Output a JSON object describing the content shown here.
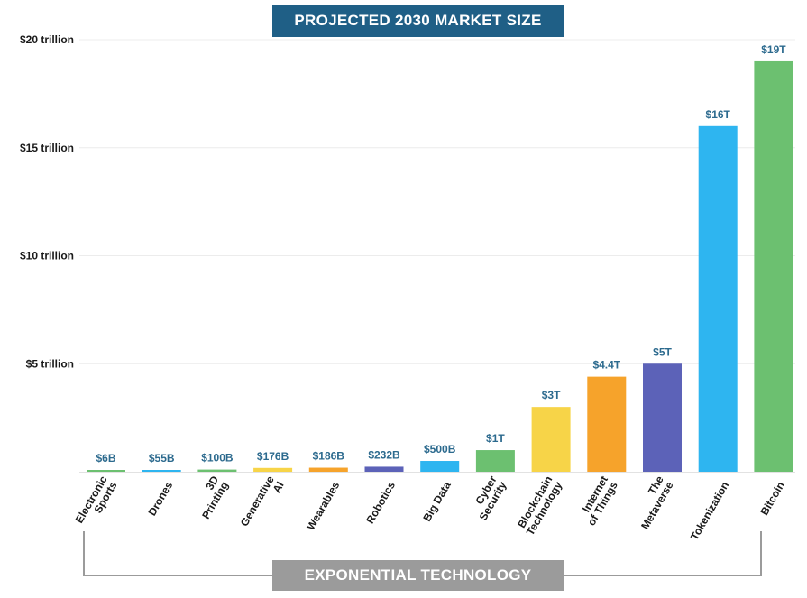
{
  "chart_data": {
    "type": "bar",
    "title": "PROJECTED 2030 MARKET SIZE",
    "xlabel": "EXPONENTIAL TECHNOLOGY",
    "ylabel": "",
    "ylim": [
      0,
      20
    ],
    "y_unit": "trillion USD",
    "y_ticks": [
      {
        "value": 5,
        "label": "$5 trillion"
      },
      {
        "value": 10,
        "label": "$10 trillion"
      },
      {
        "value": 15,
        "label": "$15 trillion"
      },
      {
        "value": 20,
        "label": "$20 trillion"
      }
    ],
    "grid": true,
    "categories": [
      [
        "Electronic",
        "Sports"
      ],
      [
        "Drones"
      ],
      [
        "3D",
        "Printing"
      ],
      [
        "Generative",
        "AI"
      ],
      [
        "Wearables"
      ],
      [
        "Robotics"
      ],
      [
        "Big Data"
      ],
      [
        "Cyber",
        "Security"
      ],
      [
        "Blockchain",
        "Technology"
      ],
      [
        "Internet",
        "of Things"
      ],
      [
        "The",
        "Metaverse"
      ],
      [
        "Tokenization"
      ],
      [
        "Bitcoin"
      ]
    ],
    "values": [
      0.006,
      0.055,
      0.1,
      0.176,
      0.186,
      0.232,
      0.5,
      1,
      3,
      4.4,
      5,
      16,
      19
    ],
    "data_labels": [
      "$6B",
      "$55B",
      "$100B",
      "$176B",
      "$186B",
      "$232B",
      "$500B",
      "$1T",
      "$3T",
      "$4.4T",
      "$5T",
      "$16T",
      "$19T"
    ],
    "colors": [
      "#6cc070",
      "#2eb5f0",
      "#6cc070",
      "#f7d448",
      "#f6a32b",
      "#5c62b8",
      "#2eb5f0",
      "#6cc070",
      "#f7d448",
      "#f6a32b",
      "#5c62b8",
      "#2eb5f0",
      "#6cc070"
    ],
    "label_color": "#2c6a8e",
    "axis_label_color": "#1a1a1a",
    "grid_color": "#ececec",
    "bracket_color": "#9b9b9b"
  }
}
